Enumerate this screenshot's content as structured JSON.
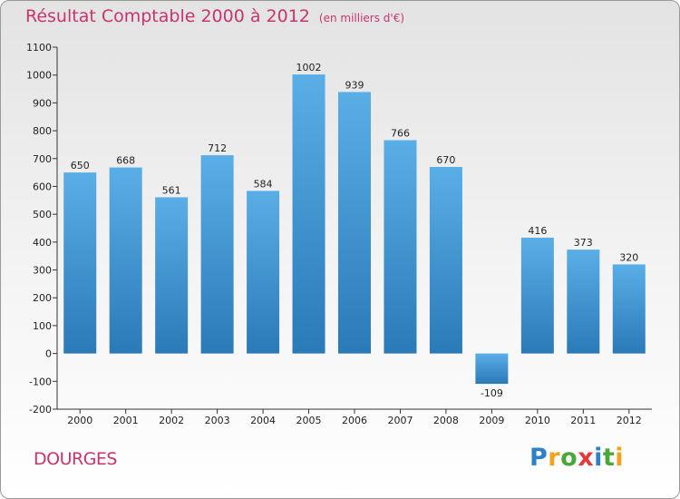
{
  "header": {
    "title": "Résultat Comptable 2000 à 2012",
    "subtitle": "(en milliers d'€)"
  },
  "footer": {
    "commune": "DOURGES",
    "brand_letters": [
      "P",
      "r",
      "o",
      "x",
      "i",
      "t",
      "i"
    ],
    "brand_colors": [
      "#2e80c8",
      "#f4a21d",
      "#4aa83a",
      "#e23a3a",
      "#2e80c8",
      "#4aa83a",
      "#f4a21d"
    ]
  },
  "colors": {
    "bar_top": "#5aaee6",
    "bar_bottom": "#2a7ab8",
    "axis": "#333333",
    "title": "#c8346e"
  },
  "chart_data": {
    "type": "bar",
    "title": "Résultat Comptable 2000 à 2012",
    "subtitle": "(en milliers d'€)",
    "xlabel": "",
    "ylabel": "",
    "categories": [
      "2000",
      "2001",
      "2002",
      "2003",
      "2004",
      "2005",
      "2006",
      "2007",
      "2008",
      "2009",
      "2010",
      "2011",
      "2012"
    ],
    "values": [
      650,
      668,
      561,
      712,
      584,
      1002,
      939,
      766,
      670,
      -109,
      416,
      373,
      320
    ],
    "value_labels": [
      "650",
      "668",
      "561",
      "712",
      "584",
      "1002",
      "939",
      "766",
      "670",
      "-109",
      "416",
      "373",
      "320"
    ],
    "ylim": [
      -200,
      1100
    ],
    "yticks": [
      -200,
      -100,
      0,
      100,
      200,
      300,
      400,
      500,
      600,
      700,
      800,
      900,
      1000,
      1100
    ],
    "ytick_labels": [
      "-200",
      "-100",
      "0",
      "100",
      "200",
      "300",
      "400",
      "500",
      "600",
      "700",
      "800",
      "900",
      "1000",
      "1100"
    ],
    "grid": false,
    "legend": "none"
  }
}
